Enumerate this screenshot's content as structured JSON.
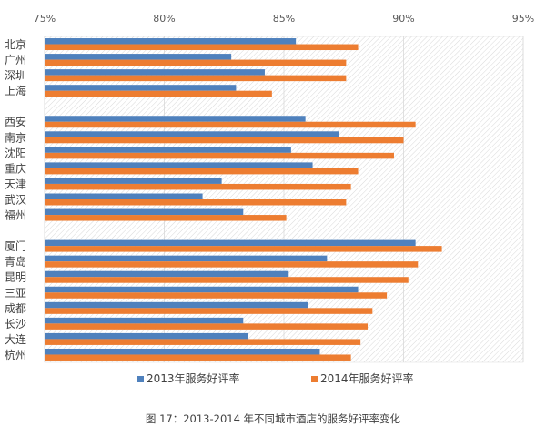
{
  "chart_data": {
    "type": "bar",
    "orientation": "horizontal",
    "categories": [
      "北京",
      "广州",
      "深圳",
      "上海",
      "西安",
      "南京",
      "沈阳",
      "重庆",
      "天津",
      "武汉",
      "福州",
      "厦门",
      "青岛",
      "昆明",
      "三亚",
      "成都",
      "长沙",
      "大连",
      "杭州"
    ],
    "groups": [
      4,
      7,
      8
    ],
    "series": [
      {
        "name": "2013年服务好评率",
        "color": "#4f81bd",
        "values": [
          85.5,
          82.8,
          84.2,
          83.0,
          85.9,
          87.3,
          85.3,
          86.2,
          82.4,
          81.6,
          83.3,
          90.5,
          86.8,
          85.2,
          88.1,
          86.0,
          83.3,
          83.5,
          86.5
        ]
      },
      {
        "name": "2014年服务好评率",
        "color": "#ed7d31",
        "values": [
          88.1,
          87.6,
          87.6,
          84.5,
          90.5,
          90.0,
          89.6,
          88.1,
          87.8,
          87.6,
          85.1,
          91.6,
          90.6,
          90.2,
          89.3,
          88.7,
          88.5,
          88.2,
          87.8
        ]
      }
    ],
    "xlim": [
      75,
      95
    ],
    "xticks": [
      "75%",
      "80%",
      "85%",
      "90%",
      "95%"
    ],
    "tick_values": [
      75,
      80,
      85,
      90,
      95
    ],
    "legend_position": "bottom",
    "background": "diagonal-hatch"
  },
  "caption": "图 17：2013-2014 年不同城市酒店的服务好评率变化"
}
